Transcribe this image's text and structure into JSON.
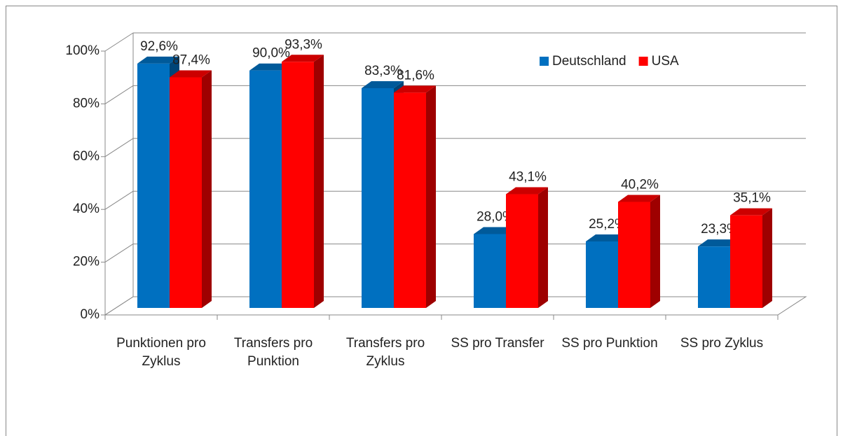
{
  "chart_data": {
    "type": "bar3d",
    "categories": [
      "Punktionen pro Zyklus",
      "Transfers pro Punktion",
      "Transfers pro Zyklus",
      "SS pro Transfer",
      "SS pro Punktion",
      "SS pro Zyklus"
    ],
    "series": [
      {
        "name": "Deutschland",
        "color": "#0070c0",
        "values": [
          92.6,
          90.0,
          83.3,
          28.0,
          25.2,
          23.3
        ],
        "value_labels": [
          "92,6%",
          "90,0%",
          "83,3%",
          "28,0%",
          "25,2%",
          "23,3%"
        ]
      },
      {
        "name": "USA",
        "color": "#ff0000",
        "values": [
          87.4,
          93.3,
          81.6,
          43.1,
          40.2,
          35.1
        ],
        "value_labels": [
          "87,4%",
          "93,3%",
          "81,6%",
          "43,1%",
          "40,2%",
          "35,1%"
        ]
      }
    ],
    "ylim": [
      0,
      100
    ],
    "yticks": [
      {
        "value": 0,
        "label": "0%"
      },
      {
        "value": 20,
        "label": "20%"
      },
      {
        "value": 40,
        "label": "40%"
      },
      {
        "value": 60,
        "label": "60%"
      },
      {
        "value": 80,
        "label": "80%"
      },
      {
        "value": 100,
        "label": "100%"
      }
    ],
    "grid": true,
    "legend": "top-right"
  }
}
